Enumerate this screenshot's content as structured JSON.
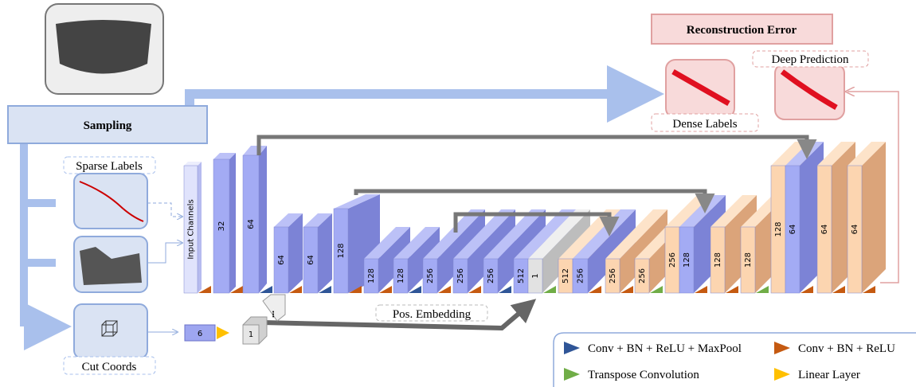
{
  "labels": {
    "reconstruction_error": "Reconstruction Error",
    "deep_prediction": "Deep Prediction",
    "dense_labels": "Dense Labels",
    "sampling": "Sampling",
    "sparse_labels": "Sparse Labels",
    "cut_coords": "Cut Coords",
    "pos_embedding": "Pos. Embedding"
  },
  "network": {
    "blocks": [
      "Input Channels",
      "32",
      "64",
      "64",
      "64",
      "128",
      "128",
      "128",
      "256",
      "256",
      "256",
      "512",
      "1",
      "512",
      "256",
      "256",
      "256",
      "256",
      "128",
      "128",
      "128",
      "128",
      "64",
      "64",
      "64"
    ],
    "linear_blocks": [
      "6",
      "1"
    ]
  },
  "legend": {
    "items": [
      "Conv + BN + ReLU + MaxPool",
      "Conv + BN + ReLU",
      "Transpose Convolution",
      "Linear Layer"
    ]
  }
}
